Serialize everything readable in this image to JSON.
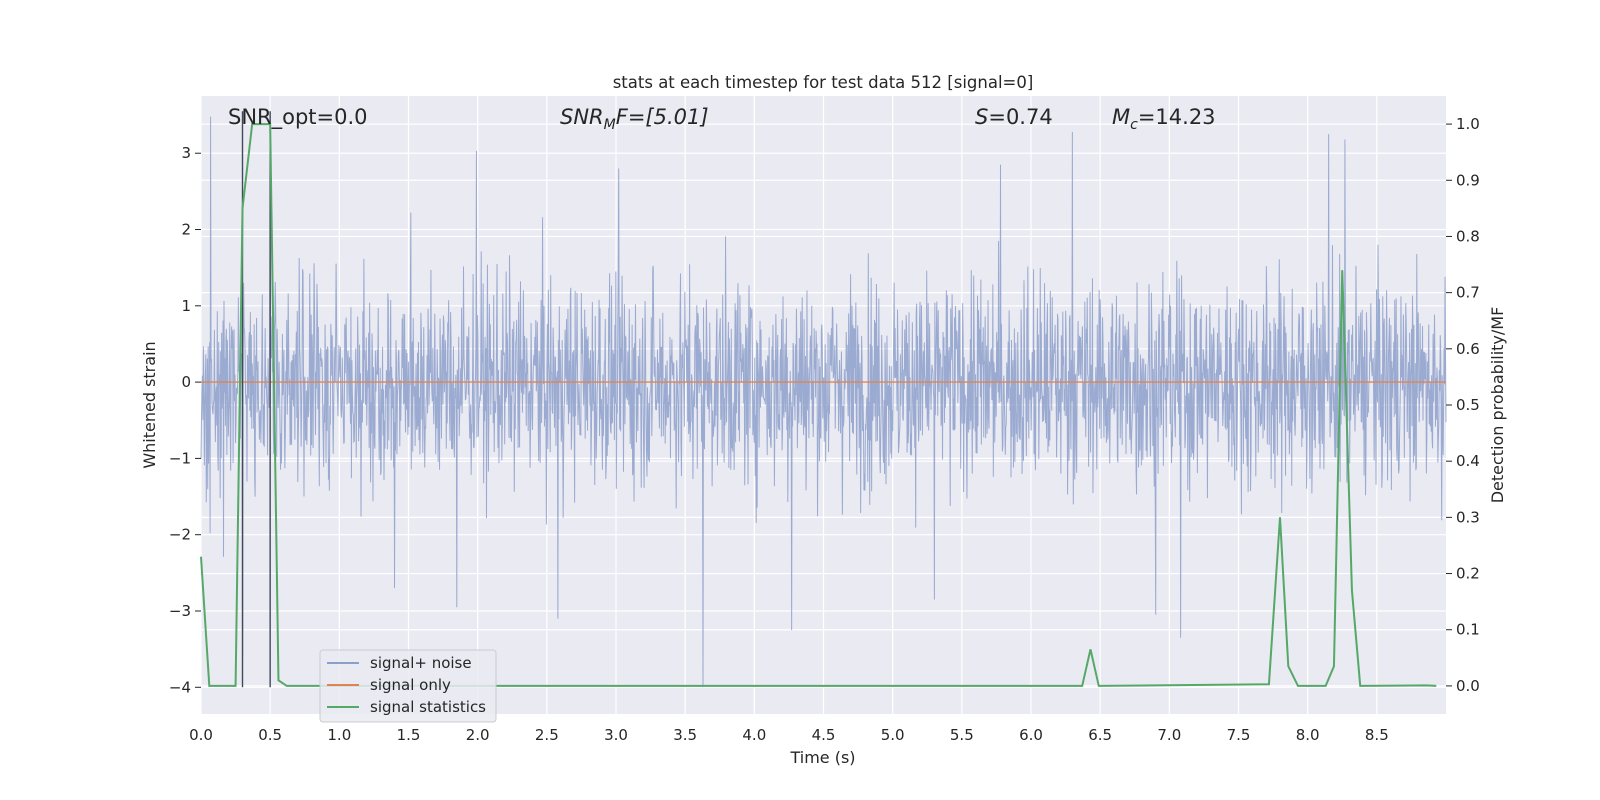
{
  "chart_data": {
    "type": "line",
    "title": "stats at each timestep for test data 512 [signal=0]",
    "xlabel": "Time (s)",
    "ylabel": "Whitened strain",
    "y2label": "Detection probability/MF",
    "xlim": [
      0.0,
      9.0
    ],
    "ylim": [
      -4.35,
      3.75
    ],
    "y2lim": [
      -0.05,
      1.05
    ],
    "x_ticks": [
      "0.0",
      "0.5",
      "1.0",
      "1.5",
      "2.0",
      "2.5",
      "3.0",
      "3.5",
      "4.0",
      "4.5",
      "5.0",
      "5.5",
      "6.0",
      "6.5",
      "7.0",
      "7.5",
      "8.0",
      "8.5"
    ],
    "y_ticks": [
      "3",
      "2",
      "1",
      "0",
      "−1",
      "−2",
      "−3",
      "−4"
    ],
    "y2_ticks": [
      "1.0",
      "0.9",
      "0.8",
      "0.7",
      "0.6",
      "0.5",
      "0.4",
      "0.3",
      "0.2",
      "0.1",
      "0.0"
    ],
    "annotations": {
      "snr_opt": "SNR_opt=0.0",
      "snr_mf_sym": "SNR",
      "snr_mf_sub": "M",
      "snr_mf_suffix": "F=[5.01]",
      "s_sym": "S",
      "s_val": "=0.74",
      "mc_sym": "M",
      "mc_sub": "c",
      "mc_val": "=14.23"
    },
    "vertical_markers_s": [
      0.3,
      0.5
    ],
    "series": [
      {
        "name": "signal+ noise",
        "color": "#8c9fca",
        "description": "whitened noise, roughly ±1.8 band with spikes to ±3.5",
        "spikes": [
          {
            "x": 0.07,
            "y": 3.48
          },
          {
            "x": 0.3,
            "y": -3.6
          },
          {
            "x": 0.5,
            "y": 2.3
          },
          {
            "x": 1.4,
            "y": -2.7
          },
          {
            "x": 1.85,
            "y": -2.95
          },
          {
            "x": 1.99,
            "y": 3.03
          },
          {
            "x": 2.58,
            "y": -3.1
          },
          {
            "x": 3.02,
            "y": 2.8
          },
          {
            "x": 3.63,
            "y": -4.0
          },
          {
            "x": 4.27,
            "y": -3.25
          },
          {
            "x": 5.3,
            "y": -2.85
          },
          {
            "x": 5.78,
            "y": 2.85
          },
          {
            "x": 6.3,
            "y": 3.28
          },
          {
            "x": 6.9,
            "y": -3.05
          },
          {
            "x": 7.08,
            "y": -3.35
          },
          {
            "x": 8.15,
            "y": 3.25
          },
          {
            "x": 8.27,
            "y": 3.18
          }
        ]
      },
      {
        "name": "signal only",
        "color": "#dd8452",
        "x": [
          0.0,
          9.0
        ],
        "y": [
          0.0,
          0.0
        ]
      },
      {
        "name": "signal statistics",
        "color": "#55a868",
        "x": [
          0.0,
          0.06,
          0.25,
          0.3,
          0.37,
          0.5,
          0.56,
          0.62,
          6.37,
          6.43,
          6.49,
          7.72,
          7.8,
          7.86,
          7.93,
          8.13,
          8.19,
          8.25,
          8.32,
          8.38,
          8.86,
          8.93
        ],
        "y": [
          0.23,
          0.0,
          0.0,
          0.85,
          1.0,
          1.0,
          0.01,
          0.0,
          0.0,
          0.065,
          0.0,
          0.003,
          0.3,
          0.035,
          0.0,
          0.0,
          0.035,
          0.74,
          0.17,
          0.0,
          0.001,
          0.0
        ]
      }
    ],
    "legend": {
      "position": "lower-left",
      "entries": [
        "signal+ noise",
        "signal only",
        "signal statistics"
      ]
    }
  },
  "colors": {
    "background": "#eaeaf2",
    "grid": "#ffffff",
    "noise": "#8c9fca",
    "signal": "#dd8452",
    "stats": "#55a868",
    "marker": "#404a5a"
  }
}
